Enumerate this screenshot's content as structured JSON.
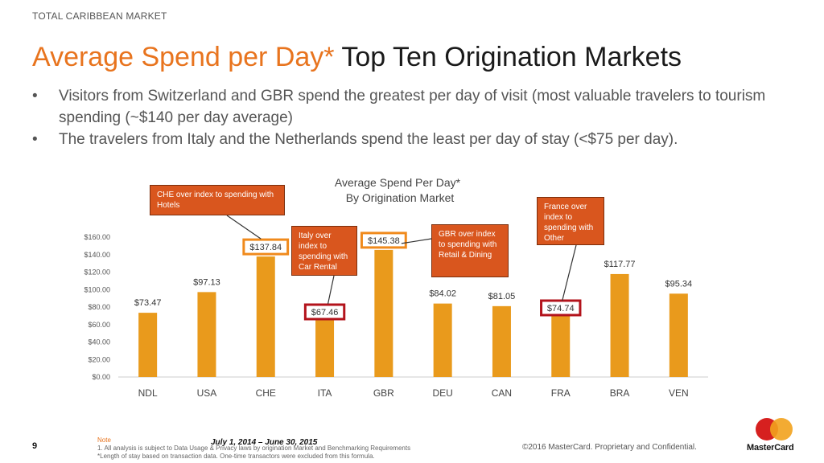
{
  "header": {
    "section_label": "TOTAL CARIBBEAN MARKET",
    "title_accent": "Average Spend per Day*",
    "title_rest": " Top Ten Origination Markets"
  },
  "bullets": [
    "Visitors from Switzerland and GBR spend the greatest per day of visit (most valuable travelers to tourism spending (~$140 per day average)",
    "The travelers from Italy and the Netherlands spend the least per day of stay (<$75 per day)."
  ],
  "callouts": {
    "che": "CHE over index to spending with Hotels",
    "ita": "Italy over index to spending with Car Rental",
    "gbr": "GBR over index to spending with Retail & Dining",
    "fra": "France over index to spending with Other"
  },
  "chart_data": {
    "type": "bar",
    "title": "Average Spend Per Day*",
    "subtitle": "By Origination Market",
    "categories": [
      "NDL",
      "USA",
      "CHE",
      "ITA",
      "GBR",
      "DEU",
      "CAN",
      "FRA",
      "BRA",
      "VEN"
    ],
    "values": [
      73.47,
      97.13,
      137.84,
      67.46,
      145.38,
      84.02,
      81.05,
      74.74,
      117.77,
      95.34
    ],
    "value_labels": [
      "$73.47",
      "$97.13",
      "$137.84",
      "$67.46",
      "$145.38",
      "$84.02",
      "$81.05",
      "$74.74",
      "$117.77",
      "$95.34"
    ],
    "highlighted": [
      "CHE",
      "ITA",
      "GBR",
      "FRA"
    ],
    "yticks": [
      "$0.00",
      "$20.00",
      "$40.00",
      "$60.00",
      "$80.00",
      "$100.00",
      "$120.00",
      "$140.00",
      "$160.00"
    ],
    "ylim": [
      0,
      160
    ],
    "bar_color": "#e99a1c",
    "highlight_orange": "#f08a1c",
    "highlight_red": "#b3131b",
    "xlabel": "",
    "ylabel": "",
    "grid": false,
    "legend": "none"
  },
  "footer": {
    "page_number": "9",
    "date_range": "July 1, 2014 – June 30, 2015",
    "note_label": "Note",
    "note_1": "1. All analysis is subject to Data Usage & Privacy laws by origination Market and Benchmarking Requirements",
    "note_2": "*Length of stay based on transaction data. One-time transactors were excluded from this formula.",
    "copyright": "©2016 MasterCard. Proprietary and Confidential.",
    "logo_text": "MasterCard"
  },
  "colors": {
    "accent": "#e8741e",
    "callout_bg": "#d9561e"
  }
}
